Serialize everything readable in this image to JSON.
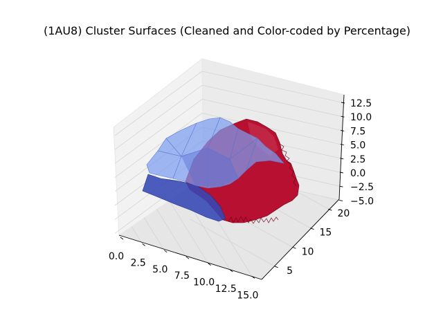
{
  "chart_data": {
    "type": "3d-surface",
    "title": "(1AU8) Cluster Surfaces (Cleaned and Color-coded by Percentage)",
    "xlabel": "",
    "ylabel": "",
    "zlabel": "",
    "x_ticks": [
      "0.0",
      "2.5",
      "5.0",
      "7.5",
      "10.0",
      "12.5",
      "15.0"
    ],
    "y_ticks": [
      "5",
      "10",
      "15",
      "20"
    ],
    "z_ticks": [
      "12.5",
      "10.0",
      "7.5",
      "5.0",
      "2.5",
      "0.0",
      "−2.5",
      "−5.0"
    ],
    "xlim": [
      0,
      16
    ],
    "ylim": [
      3,
      22
    ],
    "zlim": [
      -5,
      13.5
    ],
    "grid": true,
    "series": [
      {
        "color": "#3a4cc0",
        "alpha": 0.65
      },
      {
        "color": "#b40426",
        "alpha": 0.95
      }
    ]
  }
}
